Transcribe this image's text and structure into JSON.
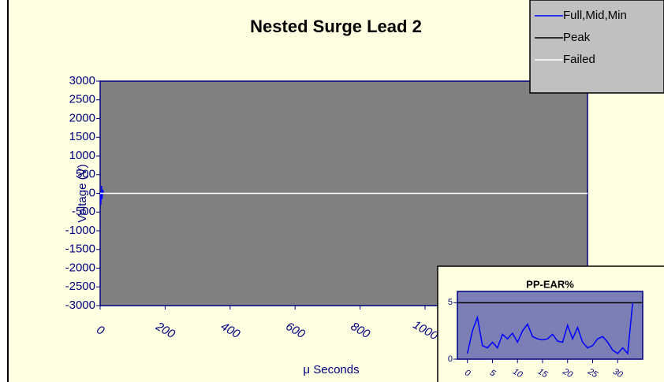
{
  "chart_data": [
    {
      "type": "line",
      "title": "Nested Surge Lead 2",
      "x_label": "μ Seconds",
      "y_label": "Voltage (V)",
      "xlim": [
        0,
        1500
      ],
      "xticks": [
        0,
        200,
        400,
        600,
        800,
        1000
      ],
      "ylim": [
        -3000,
        3000
      ],
      "yticks": [
        3000,
        2500,
        2000,
        1500,
        1000,
        500,
        0,
        -500,
        -1000,
        -1500,
        -2000,
        -2500,
        -3000
      ],
      "plot_color": "#808080",
      "legend": "upper right",
      "series": [
        {
          "name": "Full,Mid,Min",
          "color": "#0000ff",
          "x": [
            0,
            2,
            4,
            6,
            8,
            10
          ],
          "values": [
            0,
            -300,
            200,
            -150,
            100,
            0
          ]
        },
        {
          "name": "Peak",
          "color": "#000000",
          "x": [],
          "values": []
        },
        {
          "name": "Failed",
          "color": "#ffffff",
          "x": [
            0,
            1500
          ],
          "values": [
            0,
            0
          ]
        }
      ]
    },
    {
      "type": "line",
      "title": "PP-EAR%",
      "xlim": [
        -2,
        35
      ],
      "xticks": [
        0,
        5,
        10,
        15,
        20,
        25,
        30
      ],
      "ylim": [
        0,
        6
      ],
      "yticks": [
        0,
        5
      ],
      "plot_color": "#7b7fb5",
      "series": [
        {
          "color": "#000000",
          "x": [
            -2,
            35
          ],
          "values": [
            5,
            5
          ]
        },
        {
          "color": "#0000ff",
          "x": [
            0,
            1,
            2,
            3,
            4,
            5,
            6,
            7,
            8,
            9,
            10,
            11,
            12,
            13,
            14,
            15,
            16,
            17,
            18,
            19,
            20,
            21,
            22,
            23,
            24,
            25,
            26,
            27,
            28,
            29,
            30,
            31,
            32,
            33
          ],
          "values": [
            0.5,
            2.5,
            3.7,
            1.2,
            1.0,
            1.5,
            1.0,
            2.2,
            1.8,
            2.3,
            1.5,
            2.5,
            3.1,
            2.0,
            1.8,
            1.7,
            1.8,
            2.2,
            1.6,
            1.5,
            3.0,
            1.8,
            2.8,
            1.5,
            1.0,
            1.2,
            1.8,
            2.0,
            1.5,
            0.8,
            0.5,
            1.0,
            0.5,
            5.0
          ]
        }
      ]
    }
  ]
}
